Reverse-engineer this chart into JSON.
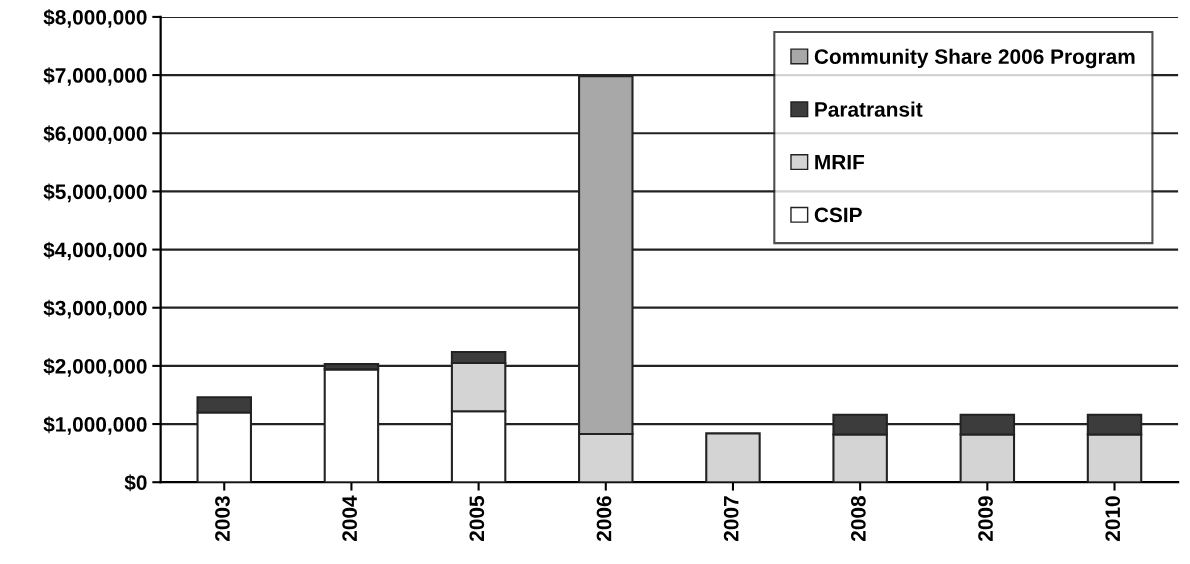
{
  "chart_data": {
    "type": "bar",
    "stacked": true,
    "categories": [
      "2003",
      "2004",
      "2005",
      "2006",
      "2007",
      "2008",
      "2009",
      "2010"
    ],
    "series": [
      {
        "name": "CSIP",
        "color": "#ffffff",
        "values": [
          1200000,
          1940000,
          1220000,
          null,
          null,
          null,
          null,
          null
        ]
      },
      {
        "name": "MRIF",
        "color": "#d4d4d4",
        "values": [
          null,
          null,
          830000,
          830000,
          840000,
          820000,
          820000,
          820000
        ]
      },
      {
        "name": "Paratransit",
        "color": "#3c3c3c",
        "values": [
          260000,
          90000,
          190000,
          null,
          null,
          340000,
          340000,
          340000
        ]
      },
      {
        "name": "Community Share 2006 Program",
        "color": "#a8a8a8",
        "values": [
          null,
          null,
          null,
          6150000,
          null,
          null,
          null,
          null
        ]
      }
    ],
    "ylim": [
      0,
      8000000
    ],
    "yticks": [
      {
        "value": 0,
        "label": "$0"
      },
      {
        "value": 1000000,
        "label": "$1,000,000"
      },
      {
        "value": 2000000,
        "label": "$2,000,000"
      },
      {
        "value": 3000000,
        "label": "$3,000,000"
      },
      {
        "value": 4000000,
        "label": "$4,000,000"
      },
      {
        "value": 5000000,
        "label": "$5,000,000"
      },
      {
        "value": 6000000,
        "label": "$6,000,000"
      },
      {
        "value": 7000000,
        "label": "$7,000,000"
      },
      {
        "value": 8000000,
        "label": "$8,000,000"
      }
    ],
    "grid": "y",
    "legend": "top right"
  }
}
